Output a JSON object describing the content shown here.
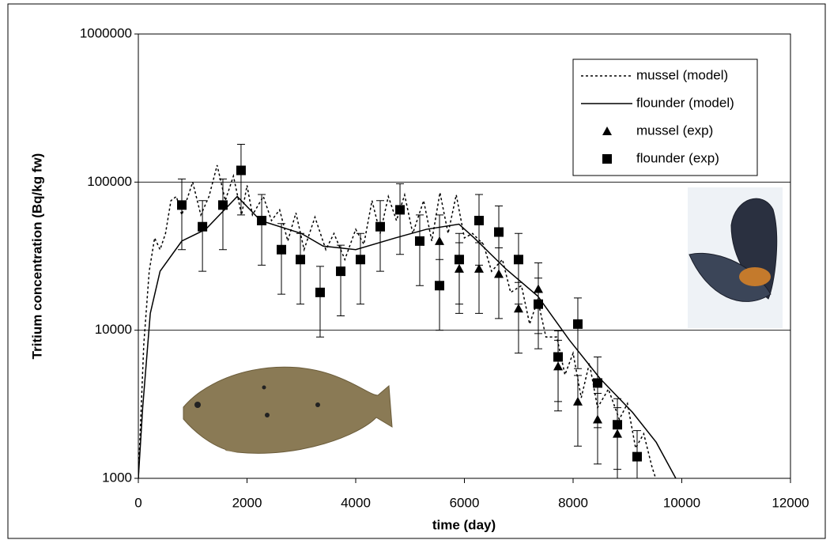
{
  "chart_data": {
    "type": "line",
    "ylabel": "Tritium concentration (Bq/kg fw)",
    "xlabel": "time (day)",
    "xlim": [
      0,
      12000
    ],
    "xticks": [
      0,
      2000,
      4000,
      6000,
      8000,
      10000,
      12000
    ],
    "ylim": [
      1000,
      1000000
    ],
    "yticks": [
      1000,
      10000,
      100000,
      1000000
    ],
    "ylog": true,
    "grid": true,
    "legend": "upper-right",
    "series": [
      {
        "name": "mussel (model)",
        "color": "#000000",
        "style": "dotted",
        "x": [
          0,
          100,
          200,
          300,
          400,
          500,
          600,
          700,
          800,
          1000,
          1150,
          1300,
          1450,
          1600,
          1750,
          1900,
          2000,
          2100,
          2300,
          2450,
          2600,
          2750,
          2900,
          3050,
          3250,
          3450,
          3600,
          3800,
          4000,
          4150,
          4300,
          4450,
          4600,
          4750,
          4900,
          5050,
          5250,
          5400,
          5550,
          5700,
          5850,
          6000,
          6150,
          6350,
          6500,
          6700,
          6850,
          7050,
          7200,
          7350,
          7500,
          7700,
          7850,
          8000,
          8150,
          8300,
          8450,
          8650,
          8850,
          9000,
          9150,
          9300,
          9450,
          9520
        ],
        "values": [
          1000,
          8000,
          25000,
          42000,
          35000,
          45000,
          75000,
          80000,
          60000,
          100000,
          60000,
          80000,
          130000,
          75000,
          110000,
          60000,
          95000,
          60000,
          80000,
          55000,
          65000,
          40000,
          62000,
          35000,
          58000,
          35000,
          45000,
          30000,
          48000,
          38000,
          75000,
          45000,
          80000,
          55000,
          82000,
          45000,
          75000,
          40000,
          85000,
          45000,
          82000,
          42000,
          45000,
          38000,
          25000,
          30000,
          18000,
          20000,
          11000,
          16000,
          9000,
          9000,
          5000,
          7000,
          3500,
          6000,
          3000,
          4000,
          2500,
          3200,
          1600,
          2000,
          1200,
          1000
        ]
      },
      {
        "name": "flounder (model)",
        "color": "#000000",
        "style": "solid",
        "x": [
          0,
          80,
          220,
          400,
          800,
          1240,
          1820,
          2250,
          3000,
          3400,
          4000,
          4730,
          5300,
          5900,
          6180,
          6760,
          7350,
          7930,
          8500,
          9090,
          9530,
          9890
        ],
        "values": [
          1000,
          3000,
          13000,
          25000,
          40000,
          48000,
          80000,
          55000,
          45000,
          37000,
          35000,
          42000,
          48000,
          52000,
          42000,
          26000,
          17000,
          8600,
          4700,
          2800,
          1750,
          1000
        ]
      },
      {
        "name": "mussel (exp)",
        "color": "#000000",
        "style": "triangle",
        "x": [
          5542,
          5905,
          6269,
          6633,
          6996,
          7360,
          7724,
          8087,
          8451,
          8815
        ],
        "values": [
          40000,
          26000,
          26000,
          24000,
          14000,
          19000,
          5700,
          3300,
          2500,
          2000
        ],
        "errors": [
          20000,
          13000,
          13000,
          12000,
          7000,
          9500,
          2850,
          1650,
          1250,
          1000
        ]
      },
      {
        "name": "flounder (exp)",
        "color": "#000000",
        "style": "square",
        "x": [
          800,
          1180,
          1556,
          1890,
          2270,
          2633,
          2982,
          3345,
          3724,
          4087,
          4451,
          4815,
          5178,
          5542,
          5905,
          6269,
          6633,
          6996,
          7360,
          7724,
          8087,
          8451,
          8815,
          9178
        ],
        "values": [
          70000,
          50000,
          70000,
          120000,
          55000,
          35000,
          30000,
          18000,
          25000,
          30000,
          50000,
          65000,
          40000,
          20000,
          30000,
          55000,
          46000,
          30000,
          15000,
          6600,
          11000,
          4400,
          2300,
          1400
        ],
        "errors": [
          35000,
          25000,
          35000,
          60000,
          27500,
          17500,
          15000,
          9000,
          12500,
          15000,
          25000,
          32500,
          20000,
          10000,
          15000,
          27500,
          23000,
          15000,
          7500,
          3300,
          5500,
          2200,
          1150,
          700
        ]
      }
    ]
  }
}
